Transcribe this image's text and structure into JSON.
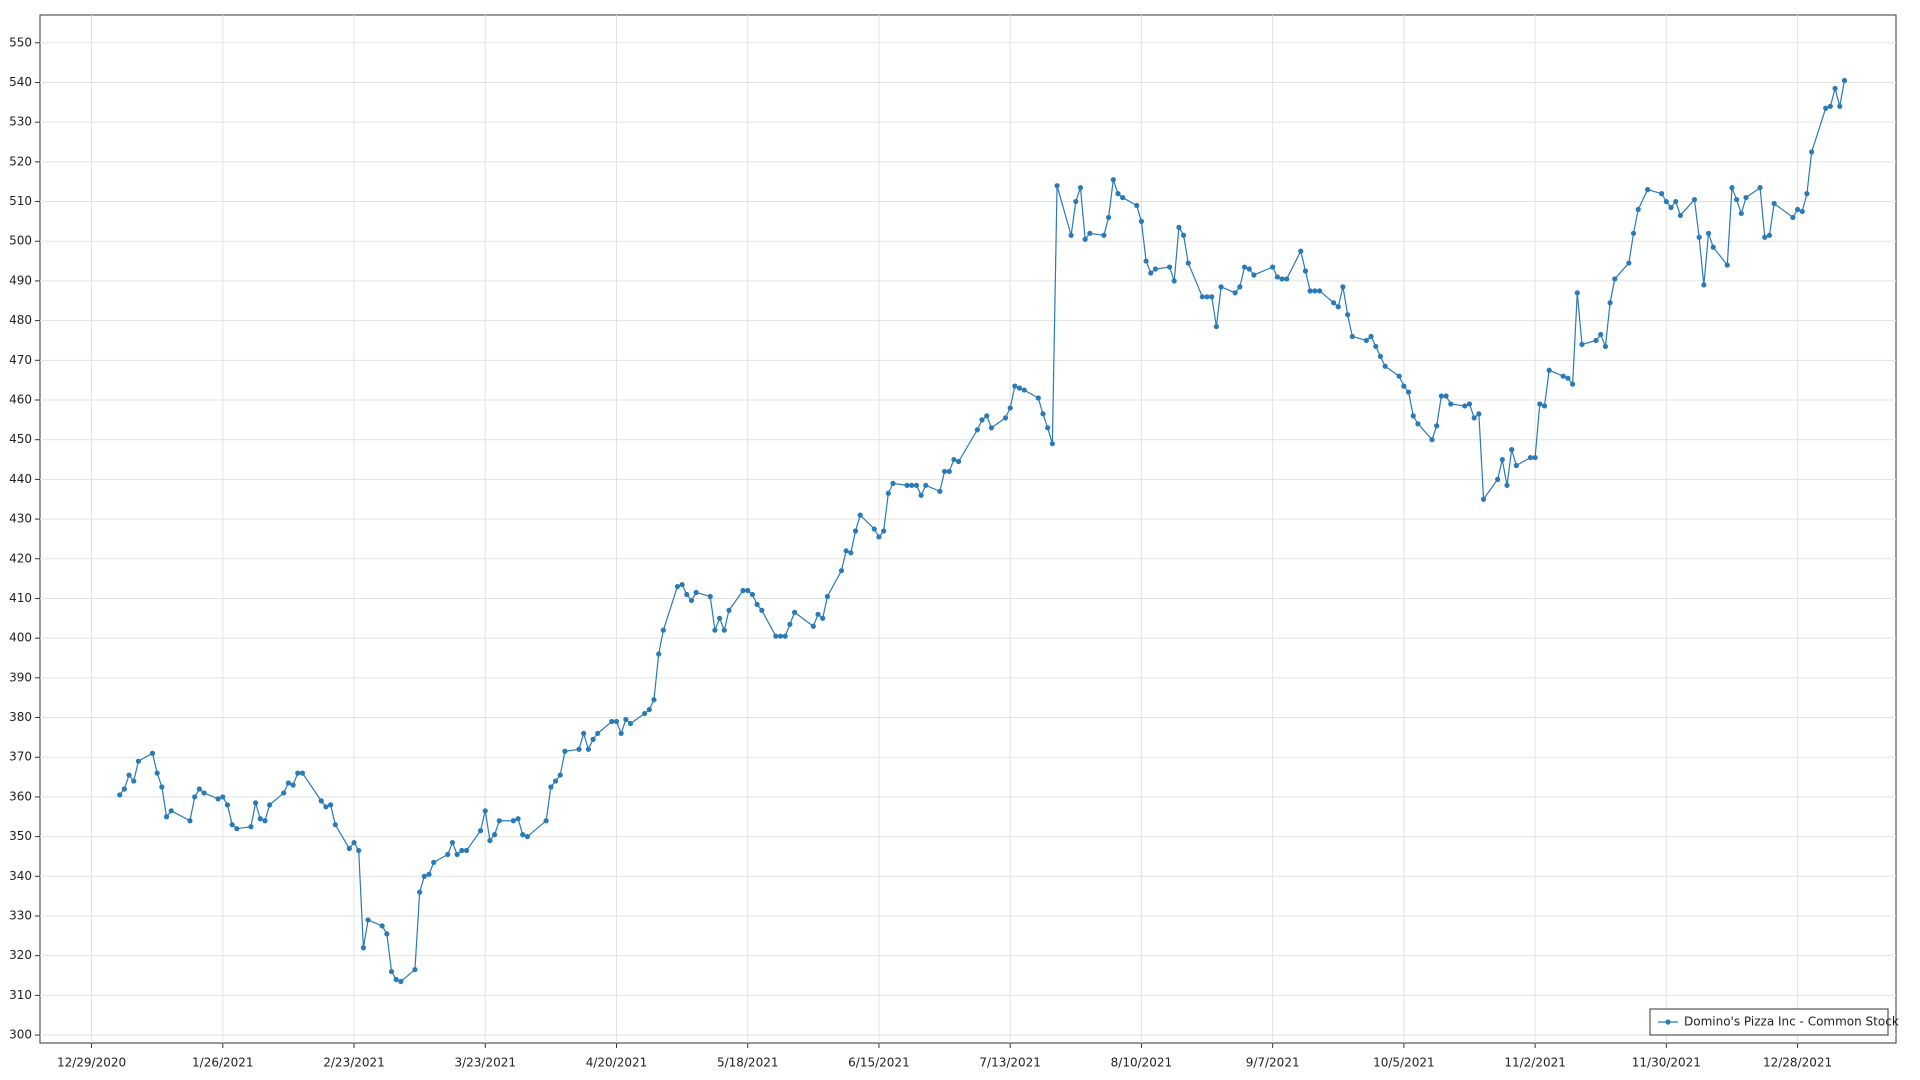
{
  "chart_data": {
    "type": "line",
    "x": [
      "2021-01-04",
      "2021-01-05",
      "2021-01-06",
      "2021-01-07",
      "2021-01-08",
      "2021-01-11",
      "2021-01-12",
      "2021-01-13",
      "2021-01-14",
      "2021-01-15",
      "2021-01-19",
      "2021-01-20",
      "2021-01-21",
      "2021-01-22",
      "2021-01-25",
      "2021-01-26",
      "2021-01-27",
      "2021-01-28",
      "2021-01-29",
      "2021-02-01",
      "2021-02-02",
      "2021-02-03",
      "2021-02-04",
      "2021-02-05",
      "2021-02-08",
      "2021-02-09",
      "2021-02-10",
      "2021-02-11",
      "2021-02-12",
      "2021-02-16",
      "2021-02-17",
      "2021-02-18",
      "2021-02-19",
      "2021-02-22",
      "2021-02-23",
      "2021-02-24",
      "2021-02-25",
      "2021-02-26",
      "2021-03-01",
      "2021-03-02",
      "2021-03-03",
      "2021-03-04",
      "2021-03-05",
      "2021-03-08",
      "2021-03-09",
      "2021-03-10",
      "2021-03-11",
      "2021-03-12",
      "2021-03-15",
      "2021-03-16",
      "2021-03-17",
      "2021-03-18",
      "2021-03-19",
      "2021-03-22",
      "2021-03-23",
      "2021-03-24",
      "2021-03-25",
      "2021-03-26",
      "2021-03-29",
      "2021-03-30",
      "2021-03-31",
      "2021-04-01",
      "2021-04-05",
      "2021-04-06",
      "2021-04-07",
      "2021-04-08",
      "2021-04-09",
      "2021-04-12",
      "2021-04-13",
      "2021-04-14",
      "2021-04-15",
      "2021-04-16",
      "2021-04-19",
      "2021-04-20",
      "2021-04-21",
      "2021-04-22",
      "2021-04-23",
      "2021-04-26",
      "2021-04-27",
      "2021-04-28",
      "2021-04-29",
      "2021-04-30",
      "2021-05-03",
      "2021-05-04",
      "2021-05-05",
      "2021-05-06",
      "2021-05-07",
      "2021-05-10",
      "2021-05-11",
      "2021-05-12",
      "2021-05-13",
      "2021-05-14",
      "2021-05-17",
      "2021-05-18",
      "2021-05-19",
      "2021-05-20",
      "2021-05-21",
      "2021-05-24",
      "2021-05-25",
      "2021-05-26",
      "2021-05-27",
      "2021-05-28",
      "2021-06-01",
      "2021-06-02",
      "2021-06-03",
      "2021-06-04",
      "2021-06-07",
      "2021-06-08",
      "2021-06-09",
      "2021-06-10",
      "2021-06-11",
      "2021-06-14",
      "2021-06-15",
      "2021-06-16",
      "2021-06-17",
      "2021-06-18",
      "2021-06-21",
      "2021-06-22",
      "2021-06-23",
      "2021-06-24",
      "2021-06-25",
      "2021-06-28",
      "2021-06-29",
      "2021-06-30",
      "2021-07-01",
      "2021-07-02",
      "2021-07-06",
      "2021-07-07",
      "2021-07-08",
      "2021-07-09",
      "2021-07-12",
      "2021-07-13",
      "2021-07-14",
      "2021-07-15",
      "2021-07-16",
      "2021-07-19",
      "2021-07-20",
      "2021-07-21",
      "2021-07-22",
      "2021-07-23",
      "2021-07-26",
      "2021-07-27",
      "2021-07-28",
      "2021-07-29",
      "2021-07-30",
      "2021-08-02",
      "2021-08-03",
      "2021-08-04",
      "2021-08-05",
      "2021-08-06",
      "2021-08-09",
      "2021-08-10",
      "2021-08-11",
      "2021-08-12",
      "2021-08-13",
      "2021-08-16",
      "2021-08-17",
      "2021-08-18",
      "2021-08-19",
      "2021-08-20",
      "2021-08-23",
      "2021-08-24",
      "2021-08-25",
      "2021-08-26",
      "2021-08-27",
      "2021-08-30",
      "2021-08-31",
      "2021-09-01",
      "2021-09-02",
      "2021-09-03",
      "2021-09-07",
      "2021-09-08",
      "2021-09-09",
      "2021-09-10",
      "2021-09-13",
      "2021-09-14",
      "2021-09-15",
      "2021-09-16",
      "2021-09-17",
      "2021-09-20",
      "2021-09-21",
      "2021-09-22",
      "2021-09-23",
      "2021-09-24",
      "2021-09-27",
      "2021-09-28",
      "2021-09-29",
      "2021-09-30",
      "2021-10-01",
      "2021-10-04",
      "2021-10-05",
      "2021-10-06",
      "2021-10-07",
      "2021-10-08",
      "2021-10-11",
      "2021-10-12",
      "2021-10-13",
      "2021-10-14",
      "2021-10-15",
      "2021-10-18",
      "2021-10-19",
      "2021-10-20",
      "2021-10-21",
      "2021-10-22",
      "2021-10-25",
      "2021-10-26",
      "2021-10-27",
      "2021-10-28",
      "2021-10-29",
      "2021-11-01",
      "2021-11-02",
      "2021-11-03",
      "2021-11-04",
      "2021-11-05",
      "2021-11-08",
      "2021-11-09",
      "2021-11-10",
      "2021-11-11",
      "2021-11-12",
      "2021-11-15",
      "2021-11-16",
      "2021-11-17",
      "2021-11-18",
      "2021-11-19",
      "2021-11-22",
      "2021-11-23",
      "2021-11-24",
      "2021-11-26",
      "2021-11-29",
      "2021-11-30",
      "2021-12-01",
      "2021-12-02",
      "2021-12-03",
      "2021-12-06",
      "2021-12-07",
      "2021-12-08",
      "2021-12-09",
      "2021-12-10",
      "2021-12-13",
      "2021-12-14",
      "2021-12-15",
      "2021-12-16",
      "2021-12-17",
      "2021-12-20",
      "2021-12-21",
      "2021-12-22",
      "2021-12-23",
      "2021-12-27",
      "2021-12-28",
      "2021-12-29",
      "2021-12-30",
      "2021-12-31",
      "2022-01-03",
      "2022-01-04",
      "2022-01-05",
      "2022-01-06",
      "2022-01-07"
    ],
    "series": [
      {
        "name": "Domino's Pizza Inc - Common Stock",
        "color": "#2a7ab8",
        "values": [
          360.5,
          362,
          365.5,
          364,
          369,
          371,
          366,
          362.5,
          355,
          356.5,
          354,
          360,
          362,
          361,
          359.5,
          360,
          358,
          353,
          352,
          352.5,
          358.5,
          354.5,
          354,
          358,
          361,
          363.5,
          363,
          366,
          366,
          359,
          357.5,
          358,
          353,
          347,
          348.5,
          346.5,
          322,
          329,
          327.5,
          325.5,
          316,
          314,
          313.5,
          316.5,
          336,
          340,
          340.5,
          343.5,
          345.5,
          348.5,
          345.5,
          346.5,
          346.5,
          351.5,
          356.5,
          349,
          350.5,
          354,
          354,
          354.5,
          350.5,
          350,
          354,
          362.5,
          364,
          365.5,
          371.5,
          372,
          376,
          372,
          374.5,
          376,
          379,
          379,
          376,
          379.5,
          378.5,
          381,
          382,
          384.5,
          396,
          402,
          413,
          413.5,
          411,
          409.5,
          411.5,
          410.5,
          402,
          405,
          402,
          407,
          412,
          412,
          411,
          408.5,
          407,
          400.5,
          400.5,
          400.5,
          403.5,
          406.5,
          403,
          406,
          405,
          410.5,
          417,
          422,
          421.5,
          427,
          431,
          427.5,
          425.5,
          427,
          436.5,
          439,
          438.5,
          438.5,
          438.5,
          436,
          438.5,
          437,
          442,
          442,
          445,
          444.5,
          452.5,
          455,
          456,
          453,
          455.5,
          458,
          463.5,
          463,
          462.5,
          460.5,
          456.5,
          453,
          449,
          514,
          501.5,
          510,
          513.5,
          500.5,
          502,
          501.5,
          506,
          515.5,
          512,
          511,
          509,
          505,
          495,
          492,
          493,
          493.5,
          490,
          503.5,
          501.5,
          494.5,
          486,
          486,
          486,
          478.5,
          488.5,
          487,
          488.5,
          493.5,
          493,
          491.5,
          493.5,
          491,
          490.5,
          490.5,
          497.5,
          492.5,
          487.5,
          487.5,
          487.5,
          484.5,
          483.5,
          488.5,
          481.5,
          476,
          475,
          476,
          473.5,
          471,
          468.5,
          466,
          463.5,
          462,
          456,
          454,
          450,
          453.5,
          461,
          461,
          459,
          458.5,
          459,
          455.5,
          456.5,
          435,
          440,
          445,
          438.5,
          447.5,
          443.5,
          445.5,
          445.5,
          459,
          458.5,
          467.5,
          466,
          465.5,
          464,
          487,
          474,
          475,
          476.5,
          473.5,
          484.5,
          490.5,
          494.5,
          502,
          508,
          513,
          512,
          510,
          508.5,
          510,
          506.5,
          510.5,
          501,
          489,
          502,
          498.5,
          494,
          513.5,
          510.5,
          507,
          511,
          513.5,
          501,
          501.5,
          509.5,
          506,
          508,
          507.5,
          512,
          522.5,
          533.5,
          534,
          538.5,
          534,
          540.5
        ]
      }
    ],
    "xlim": [
      "2020-12-18",
      "2022-01-18"
    ],
    "xticks": [
      {
        "value": "2020-12-29",
        "label": "12/29/2020"
      },
      {
        "value": "2021-01-26",
        "label": "1/26/2021"
      },
      {
        "value": "2021-02-23",
        "label": "2/23/2021"
      },
      {
        "value": "2021-03-23",
        "label": "3/23/2021"
      },
      {
        "value": "2021-04-20",
        "label": "4/20/2021"
      },
      {
        "value": "2021-05-18",
        "label": "5/18/2021"
      },
      {
        "value": "2021-06-15",
        "label": "6/15/2021"
      },
      {
        "value": "2021-07-13",
        "label": "7/13/2021"
      },
      {
        "value": "2021-08-10",
        "label": "8/10/2021"
      },
      {
        "value": "2021-09-07",
        "label": "9/7/2021"
      },
      {
        "value": "2021-10-05",
        "label": "10/5/2021"
      },
      {
        "value": "2021-11-02",
        "label": "11/2/2021"
      },
      {
        "value": "2021-11-30",
        "label": "11/30/2021"
      },
      {
        "value": "2021-12-28",
        "label": "12/28/2021"
      }
    ],
    "ylim": [
      298,
      557
    ],
    "yticks": [
      300,
      310,
      320,
      330,
      340,
      350,
      360,
      370,
      380,
      390,
      400,
      410,
      420,
      430,
      440,
      450,
      460,
      470,
      480,
      490,
      500,
      510,
      520,
      530,
      540,
      550
    ],
    "grid": true,
    "legend": "bottom-right"
  }
}
